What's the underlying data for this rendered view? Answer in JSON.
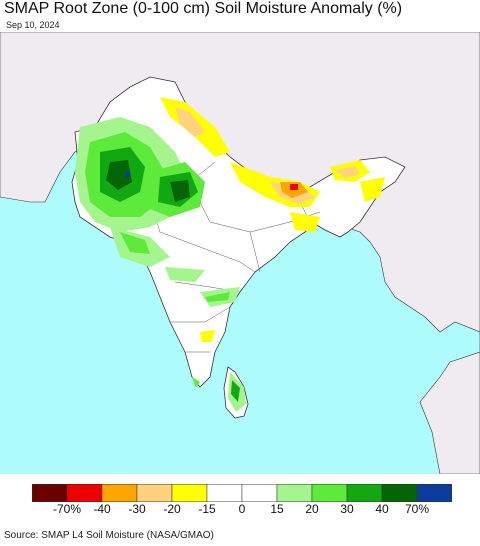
{
  "header": {
    "title": "SMAP Root Zone (0-100 cm) Soil Moisture Anomaly (%)",
    "date": "Sep 10, 2024"
  },
  "legend": {
    "bins": [
      {
        "color": "#6b0000"
      },
      {
        "color": "#ee0000"
      },
      {
        "color": "#ffa500"
      },
      {
        "color": "#ffd27f"
      },
      {
        "color": "#ffff00"
      },
      {
        "color": "#ffffff"
      },
      {
        "color": "#ffffff"
      },
      {
        "color": "#a4f58d"
      },
      {
        "color": "#5eea3a"
      },
      {
        "color": "#12a812"
      },
      {
        "color": "#046504"
      },
      {
        "color": "#0b3b9c"
      }
    ],
    "labels": [
      "-70%",
      "-40",
      "-30",
      "-20",
      "-15",
      "0",
      "15",
      "20",
      "30",
      "40",
      "70%"
    ]
  },
  "colors": {
    "ocean": "#aefcfb",
    "land_focus": "#ffffff",
    "land_outside": "#efebf0",
    "borders": "#333333"
  },
  "footer": {
    "source": "Source: SMAP L4 Soil Moisture (NASA/GMAO)"
  }
}
